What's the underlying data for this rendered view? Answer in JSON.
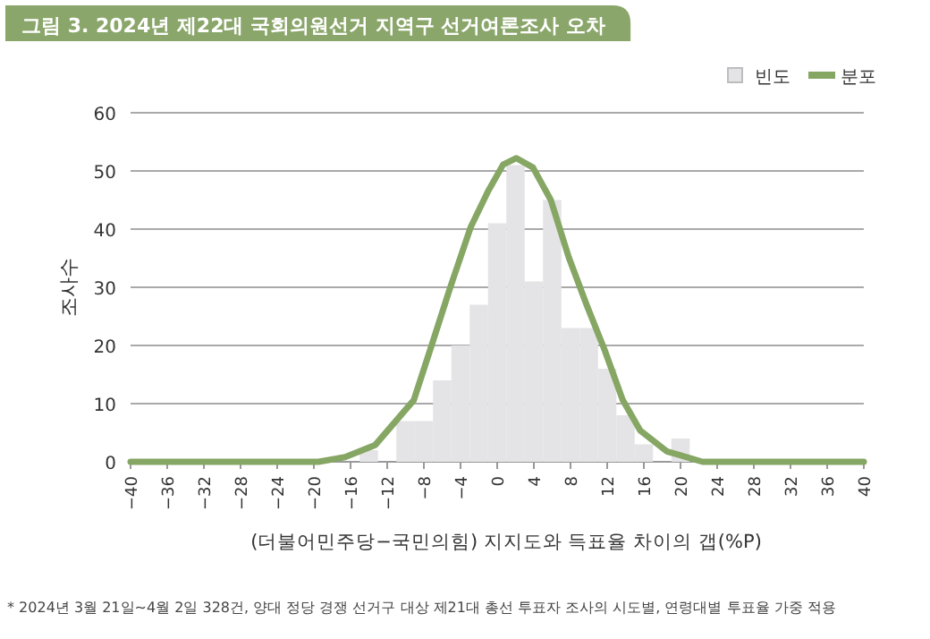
{
  "chart_data": {
    "type": "histogram",
    "title": "그림 3. 2024년 제22대 국회의원선거 지역구 선거여론조사 오차",
    "xlabel": "(더불어민주당−국민의힘) 지지도와 득표율 차이의 갭(%P)",
    "ylabel": "조사수",
    "annotations": [
      "* 2024년 3월 21일~4월 2일 328건, 양대 정당 경쟁 선거구 대상 제21대 총선 투표자 조사의 시도별, 연령대별 투표율 가중 적용"
    ],
    "bins": [
      -15,
      -13,
      -11,
      -9,
      -7,
      -5,
      -3,
      -1,
      1,
      3,
      5,
      7,
      9,
      11,
      13,
      15,
      17,
      19,
      21
    ],
    "series": [
      {
        "name": "빈도",
        "color": "#e4e4e6",
        "values": [
          2,
          0,
          7,
          7,
          14,
          20,
          27,
          41,
          51,
          31,
          45,
          23,
          23,
          16,
          8,
          3,
          0,
          4
        ]
      },
      {
        "name": "분포",
        "type": "line",
        "color": "#86a664",
        "x": [
          -40,
          -20,
          -19.5,
          -16.6,
          -13.3,
          -9.1,
          -7.2,
          -5.2,
          -2.9,
          -1,
          0.65,
          2.1,
          3.9,
          5.85,
          7.8,
          9.75,
          11.7,
          13.7,
          15.6,
          18.5,
          22.4,
          24,
          40
        ],
        "values": [
          0,
          0,
          0,
          0.8,
          2.9,
          10.6,
          19.8,
          29.6,
          40.3,
          46.5,
          51.1,
          52.2,
          50.6,
          45,
          35.2,
          27,
          19.3,
          10.6,
          5.4,
          1.8,
          0,
          0,
          0
        ]
      }
    ],
    "xlim": [
      -40,
      40
    ],
    "xticks": [
      -40,
      -36,
      -32,
      -28,
      -24,
      -20,
      -16,
      -12,
      -8,
      -4,
      0,
      4,
      8,
      12,
      16,
      20,
      24,
      28,
      32,
      36,
      40
    ],
    "ylim": [
      0,
      60
    ],
    "yticks": [
      0,
      10,
      20,
      30,
      40,
      50,
      60
    ],
    "grid": "y",
    "legend": "top right",
    "line_style": "solid",
    "marker": "none"
  }
}
